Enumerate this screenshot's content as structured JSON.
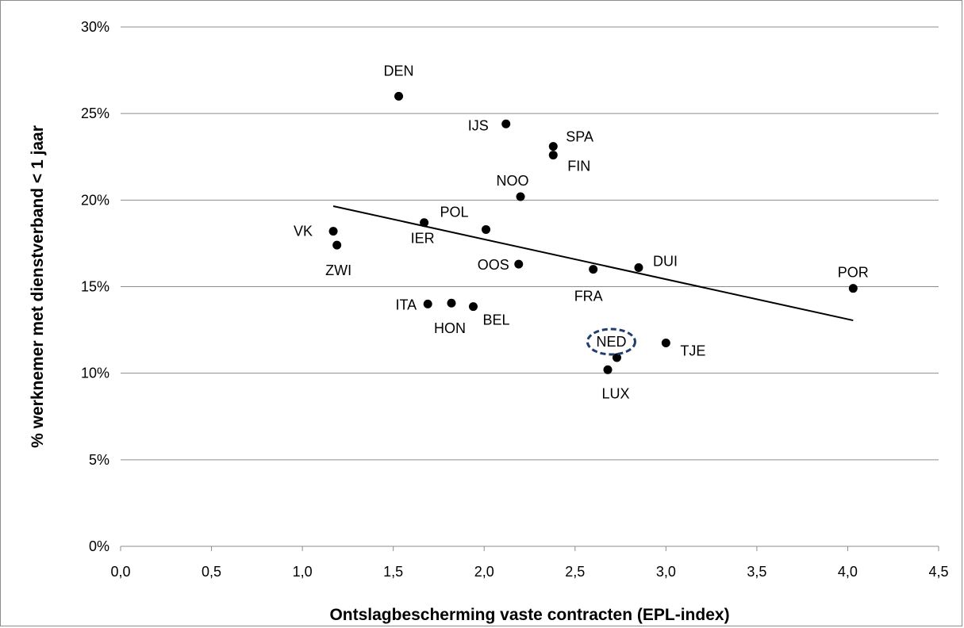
{
  "chart_data": {
    "type": "scatter",
    "title": "",
    "xlabel": "Ontslagbescherming vaste contracten (EPL-index)",
    "ylabel": "% werknemer met dienstverband < 1 jaar",
    "xlim": [
      0,
      4.5
    ],
    "ylim": [
      0,
      30
    ],
    "x_ticks": [
      0,
      0.5,
      1,
      1.5,
      2,
      2.5,
      3,
      3.5,
      4,
      4.5
    ],
    "x_tick_labels": [
      "0,0",
      "0,5",
      "1,0",
      "1,5",
      "2,0",
      "2,5",
      "3,0",
      "3,5",
      "4,0",
      "4,5"
    ],
    "y_ticks": [
      0,
      5,
      10,
      15,
      20,
      25,
      30
    ],
    "y_tick_labels": [
      "0%",
      "5%",
      "10%",
      "15%",
      "20%",
      "25%",
      "30%"
    ],
    "grid": "horizontal",
    "legend": "none",
    "marker_color": "#000000",
    "highlight_color": "#1f3e6e",
    "points": [
      {
        "label": "DEN",
        "x": 1.53,
        "y": 26.0
      },
      {
        "label": "IJS",
        "x": 2.12,
        "y": 24.4
      },
      {
        "label": "SPA",
        "x": 2.38,
        "y": 23.1
      },
      {
        "label": "FIN",
        "x": 2.38,
        "y": 22.6
      },
      {
        "label": "NOO",
        "x": 2.2,
        "y": 20.2
      },
      {
        "label": "VK",
        "x": 1.17,
        "y": 18.2
      },
      {
        "label": "ZWI",
        "x": 1.19,
        "y": 17.4
      },
      {
        "label": "IER",
        "x": 1.67,
        "y": 18.7
      },
      {
        "label": "POL",
        "x": 2.01,
        "y": 18.3
      },
      {
        "label": "OOS",
        "x": 2.19,
        "y": 16.3
      },
      {
        "label": "FRA",
        "x": 2.6,
        "y": 16.0
      },
      {
        "label": "DUI",
        "x": 2.85,
        "y": 16.1
      },
      {
        "label": "POR",
        "x": 4.03,
        "y": 14.9
      },
      {
        "label": "ITA",
        "x": 1.69,
        "y": 14.0
      },
      {
        "label": "HON",
        "x": 1.82,
        "y": 14.05
      },
      {
        "label": "BEL",
        "x": 1.94,
        "y": 13.85
      },
      {
        "label": "NED",
        "x": 2.73,
        "y": 10.9,
        "highlight": true
      },
      {
        "label": "TJE",
        "x": 3.0,
        "y": 11.75
      },
      {
        "label": "LUX",
        "x": 2.68,
        "y": 10.2
      }
    ],
    "trendline": {
      "type": "linear",
      "x": [
        1.17,
        4.03
      ],
      "y": [
        19.65,
        13.05
      ]
    }
  }
}
